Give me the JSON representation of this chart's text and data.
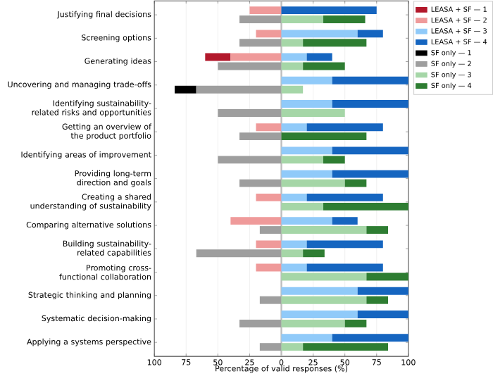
{
  "chart_data": {
    "type": "bar",
    "orientation": "horizontal",
    "xlabel": "Percentage of valid responses (%)",
    "categories": [
      "Justifying final decisions",
      "Screening options",
      "Generating ideas",
      "Uncovering and managing trade-offs",
      "Identifying sustainability-related risks and opportunities",
      "Getting an overview of the product portfolio",
      "Identifying areas of improvement",
      "Providing long-term direction and goals",
      "Creating a shared understanding of sustainability",
      "Comparing alternative solutions",
      "Building sustainability-related capabilities",
      "Promoting cross-functional collaboration",
      "Strategic thinking and planning",
      "Systematic decision-making",
      "Applying a systems perspective"
    ],
    "series": [
      {
        "name": "LEASA + SF — 1",
        "color": "#b2182b",
        "values": [
          0,
          0,
          -20,
          0,
          0,
          0,
          0,
          0,
          0,
          0,
          0,
          0,
          0,
          0,
          0
        ],
        "base": [
          null,
          null,
          -40,
          null,
          null,
          null,
          null,
          null,
          null,
          null,
          null,
          null,
          null,
          null,
          null
        ]
      },
      {
        "name": "LEASA + SF — 2",
        "color": "#ef9a9a",
        "values": [
          -25,
          -20,
          -40,
          0,
          0,
          -20,
          0,
          0,
          -20,
          -40,
          -20,
          -20,
          0,
          0,
          0
        ],
        "base": [
          0,
          0,
          0,
          null,
          null,
          0,
          null,
          null,
          0,
          0,
          0,
          0,
          null,
          null,
          null
        ]
      },
      {
        "name": "LEASA + SF — 3",
        "color": "#90caf9",
        "values": [
          0,
          60,
          20,
          40,
          40,
          20,
          40,
          40,
          20,
          40,
          20,
          20,
          60,
          60,
          40
        ],
        "base": [
          null,
          0,
          0,
          0,
          0,
          0,
          0,
          0,
          0,
          0,
          0,
          0,
          0,
          0,
          0
        ]
      },
      {
        "name": "LEASA + SF — 4",
        "color": "#1565c0",
        "values": [
          75,
          20,
          20,
          60,
          60,
          60,
          60,
          60,
          60,
          20,
          60,
          60,
          40,
          40,
          60
        ],
        "base": [
          0,
          60,
          20,
          40,
          40,
          20,
          40,
          40,
          20,
          40,
          20,
          20,
          60,
          60,
          40
        ]
      },
      {
        "name": "SF only — 1",
        "color": "#000000",
        "values": [
          0,
          0,
          0,
          -17,
          0,
          0,
          0,
          0,
          0,
          0,
          0,
          0,
          0,
          0,
          0
        ],
        "base": [
          null,
          null,
          null,
          -67,
          null,
          null,
          null,
          null,
          null,
          null,
          null,
          null,
          null,
          null,
          null
        ]
      },
      {
        "name": "SF only — 2",
        "color": "#9e9e9e",
        "values": [
          -33,
          -33,
          -50,
          -67,
          -50,
          -33,
          -50,
          -33,
          0,
          -17,
          -67,
          0,
          -17,
          -33,
          -17
        ],
        "base": [
          0,
          0,
          0,
          0,
          0,
          0,
          0,
          0,
          null,
          0,
          0,
          null,
          0,
          0,
          0
        ]
      },
      {
        "name": "SF only — 3",
        "color": "#a5d6a7",
        "values": [
          33,
          17,
          17,
          17,
          50,
          0,
          33,
          50,
          33,
          67,
          17,
          67,
          67,
          50,
          17
        ],
        "base": [
          0,
          0,
          0,
          0,
          0,
          null,
          0,
          0,
          0,
          0,
          0,
          0,
          0,
          0,
          0
        ]
      },
      {
        "name": "SF only — 4",
        "color": "#2e7d32",
        "values": [
          33,
          50,
          33,
          0,
          0,
          67,
          17,
          17,
          67,
          17,
          17,
          33,
          17,
          17,
          67
        ],
        "base": [
          33,
          17,
          17,
          null,
          null,
          0,
          33,
          50,
          33,
          67,
          17,
          67,
          67,
          50,
          17
        ]
      }
    ],
    "xlim": [
      -100,
      100
    ],
    "xticks": [
      {
        "value": -100,
        "label": "100"
      },
      {
        "value": -75,
        "label": "75"
      },
      {
        "value": -50,
        "label": "50"
      },
      {
        "value": -25,
        "label": "25"
      },
      0,
      25,
      50,
      75,
      100
    ],
    "ref_lines": [
      {
        "axis": "x",
        "value": 0,
        "color": "#bdbdbd"
      }
    ],
    "grid": "x",
    "legend": "top right"
  }
}
